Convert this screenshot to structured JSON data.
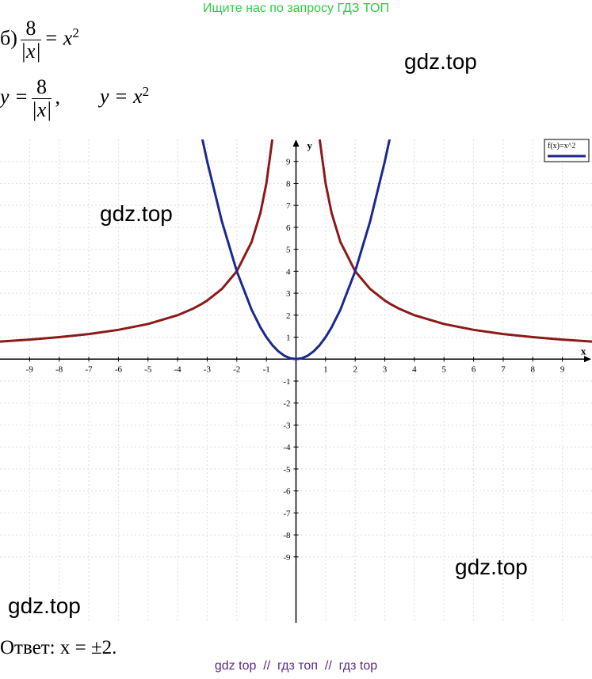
{
  "banner": "Ищите нас по запросу ГДЗ ТОП",
  "problem": {
    "label": "б)",
    "numerator": "8",
    "denominator": "|x|",
    "rhs": "= x",
    "exponent": "2"
  },
  "system": {
    "left": "y =",
    "numerator": "8",
    "denominator": "|x|",
    "comma": ",",
    "right": "y = x",
    "exponent": "2"
  },
  "watermarks": [
    "gdz.top",
    "gdz.top",
    "gdz.top",
    "gdz.top"
  ],
  "answer": "Ответ: x = ±2.",
  "footer": "gdz top  //  гдз топ  //  гдз top",
  "chart_data": {
    "type": "line",
    "x_label": "x",
    "y_label": "y",
    "xlim": [
      -10,
      10
    ],
    "ylim": [
      -12,
      10
    ],
    "xticks": [
      -9,
      -8,
      -7,
      -6,
      -5,
      -4,
      -3,
      -2,
      -1,
      1,
      2,
      3,
      4,
      5,
      6,
      7,
      8,
      9
    ],
    "yticks": [
      -9,
      -8,
      -7,
      -6,
      -5,
      -4,
      -3,
      -2,
      -1,
      1,
      2,
      3,
      4,
      5,
      6,
      7,
      8,
      9
    ],
    "grid": true,
    "x": [
      -10,
      -9,
      -8,
      -7,
      -6,
      -5,
      -4,
      -3.5,
      -3.2,
      -3,
      -2.5,
      -2,
      -1.5,
      -1.2,
      -1,
      -0.8,
      -0.6,
      -0.4,
      -0.2,
      0,
      0.2,
      0.4,
      0.6,
      0.8,
      1,
      1.2,
      1.5,
      2,
      2.5,
      3,
      3.2,
      3.5,
      4,
      5,
      6,
      7,
      8,
      9,
      10
    ],
    "series": [
      {
        "color": "#8b1a1a",
        "values": [
          0.8,
          0.889,
          1,
          1.143,
          1.333,
          1.6,
          2,
          2.286,
          2.5,
          2.667,
          3.2,
          4,
          5.333,
          6.667,
          8,
          10,
          null,
          null,
          null,
          null,
          null,
          null,
          null,
          10,
          8,
          6.667,
          5.333,
          4,
          3.2,
          2.667,
          2.5,
          2.286,
          2,
          1.6,
          1.333,
          1.143,
          1,
          0.889,
          0.8
        ]
      },
      {
        "name": "f(x)=x^2",
        "color": "#1a2a8c",
        "values": [
          null,
          null,
          null,
          null,
          null,
          null,
          null,
          null,
          10.24,
          9,
          6.25,
          4,
          2.25,
          1.44,
          1,
          0.64,
          0.36,
          0.16,
          0.04,
          0,
          0.04,
          0.16,
          0.36,
          0.64,
          1,
          1.44,
          2.25,
          4,
          6.25,
          9,
          10.24,
          null,
          null,
          null,
          null,
          null,
          null,
          null,
          null
        ]
      }
    ],
    "legend": "top-right"
  }
}
